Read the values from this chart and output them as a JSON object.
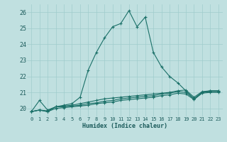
{
  "xlabel": "Humidex (Indice chaleur)",
  "bg_color": "#c0e0e0",
  "grid_color": "#a0cccc",
  "line_color": "#1a7068",
  "xlim": [
    -0.5,
    23.5
  ],
  "ylim": [
    19.5,
    26.5
  ],
  "xticks": [
    0,
    1,
    2,
    3,
    4,
    5,
    6,
    7,
    8,
    9,
    10,
    11,
    12,
    13,
    14,
    15,
    16,
    17,
    18,
    19,
    20,
    21,
    22,
    23
  ],
  "yticks": [
    20,
    21,
    22,
    23,
    24,
    25,
    26
  ],
  "series": [
    [
      19.8,
      20.5,
      19.9,
      20.1,
      20.2,
      20.3,
      20.7,
      22.4,
      23.5,
      24.4,
      25.1,
      25.3,
      26.1,
      25.1,
      25.7,
      23.5,
      22.6,
      22.0,
      21.6,
      21.1,
      20.6,
      21.0,
      21.1,
      21.1
    ],
    [
      19.8,
      19.9,
      19.85,
      20.1,
      20.15,
      20.2,
      20.3,
      20.4,
      20.5,
      20.6,
      20.65,
      20.7,
      20.75,
      20.8,
      20.85,
      20.9,
      20.95,
      21.0,
      21.1,
      21.15,
      20.7,
      21.05,
      21.1,
      21.1
    ],
    [
      19.8,
      19.9,
      19.8,
      20.1,
      20.1,
      20.15,
      20.2,
      20.3,
      20.35,
      20.45,
      20.5,
      20.6,
      20.65,
      20.7,
      20.75,
      20.8,
      20.9,
      20.95,
      21.05,
      21.0,
      20.6,
      21.0,
      21.05,
      21.05
    ],
    [
      19.8,
      19.9,
      19.8,
      20.0,
      20.05,
      20.1,
      20.15,
      20.2,
      20.3,
      20.35,
      20.4,
      20.5,
      20.55,
      20.6,
      20.65,
      20.7,
      20.8,
      20.85,
      20.95,
      20.9,
      20.55,
      20.95,
      21.0,
      21.0
    ]
  ]
}
